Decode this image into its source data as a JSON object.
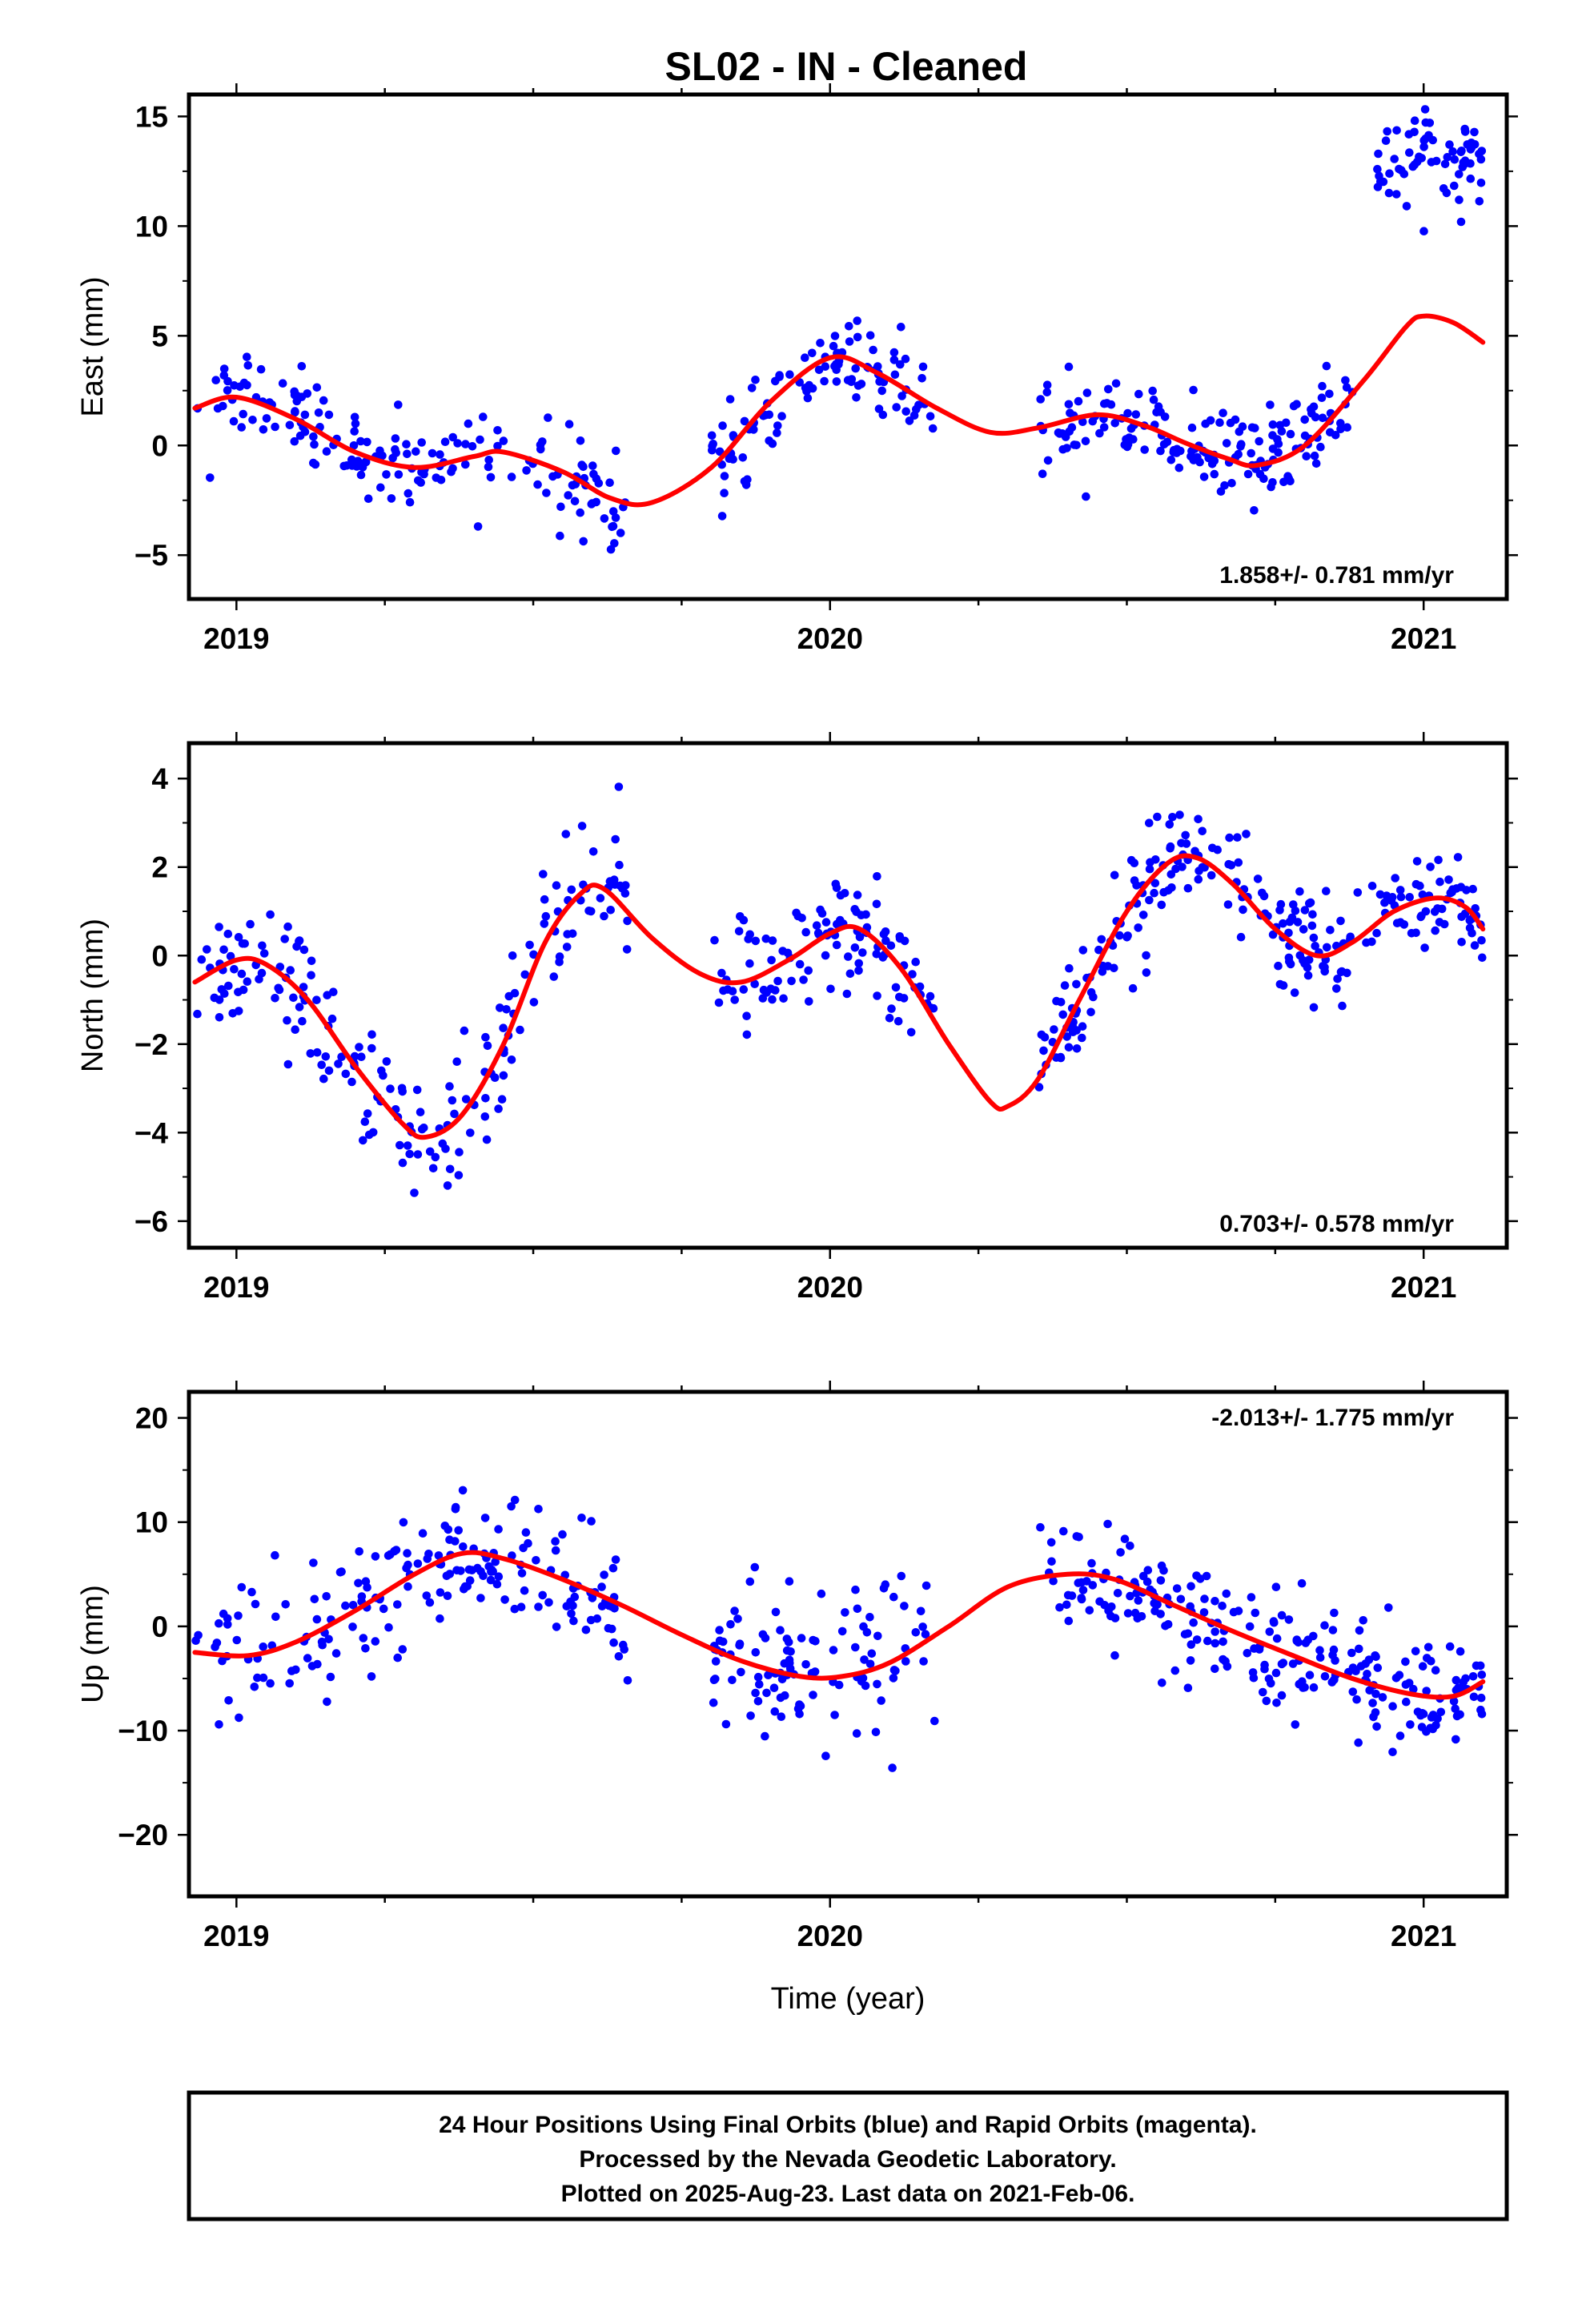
{
  "title": "SL02  - IN - Cleaned",
  "chart_data": [
    {
      "type": "scatter",
      "ylabel": "East (mm)",
      "xlabel": "",
      "xlim": [
        2018.92,
        2021.14
      ],
      "ylim": [
        -7.0,
        16.0
      ],
      "x_ticks": [
        2019,
        2020,
        2021
      ],
      "x_tick_labels": [
        "2019",
        "2020",
        "2021"
      ],
      "y_ticks": [
        15,
        10,
        5,
        0,
        -5
      ],
      "y_tick_labels": [
        "15",
        "10",
        "5",
        "0",
        "−5"
      ],
      "rate_label": "1.858+/- 0.781 mm/yr",
      "rate_position": "bottom-right",
      "series": [
        {
          "kind": "points",
          "color": "#0000ff",
          "segments": [
            {
              "x0": 2018.93,
              "x1": 2019.66,
              "mean": -0.8,
              "slope": 0.0,
              "amp": 1.1,
              "amp2": 0.6,
              "noise": 1.4,
              "n": 170
            },
            {
              "x0": 2019.8,
              "x1": 2020.18,
              "mean": 0.4,
              "slope": 0.0,
              "amp": 1.2,
              "amp2": 0.4,
              "noise": 1.5,
              "n": 110
            },
            {
              "x0": 2020.35,
              "x1": 2020.88,
              "mean": 0.5,
              "slope": 0.0,
              "amp": 1.2,
              "amp2": 0.5,
              "noise": 1.3,
              "n": 170
            },
            {
              "x0": 2020.92,
              "x1": 2021.1,
              "mean": 13.0,
              "slope": 0.0,
              "amp": 0.0,
              "amp2": 0.0,
              "noise": 1.3,
              "n": 70
            }
          ]
        },
        {
          "kind": "model",
          "color": "#ff0000",
          "x0": 2018.93,
          "x1": 2021.1,
          "points": [
            [
              2018.93,
              1.7
            ],
            [
              2019.0,
              2.2
            ],
            [
              2019.1,
              1.2
            ],
            [
              2019.2,
              -0.3
            ],
            [
              2019.3,
              -1.0
            ],
            [
              2019.4,
              -0.5
            ],
            [
              2019.45,
              -0.3
            ],
            [
              2019.55,
              -1.2
            ],
            [
              2019.63,
              -2.4
            ],
            [
              2019.7,
              -2.6
            ],
            [
              2019.8,
              -1.0
            ],
            [
              2019.9,
              2.0
            ],
            [
              2020.0,
              4.0
            ],
            [
              2020.08,
              3.3
            ],
            [
              2020.18,
              1.7
            ],
            [
              2020.27,
              0.6
            ],
            [
              2020.35,
              0.8
            ],
            [
              2020.45,
              1.4
            ],
            [
              2020.53,
              0.9
            ],
            [
              2020.6,
              0.1
            ],
            [
              2020.67,
              -0.6
            ],
            [
              2020.72,
              -0.9
            ],
            [
              2020.8,
              0.0
            ],
            [
              2020.9,
              3.0
            ],
            [
              2020.97,
              5.4
            ],
            [
              2021.0,
              5.9
            ],
            [
              2021.05,
              5.6
            ],
            [
              2021.1,
              4.7
            ]
          ]
        }
      ]
    },
    {
      "type": "scatter",
      "ylabel": "North (mm)",
      "xlabel": "",
      "xlim": [
        2018.92,
        2021.14
      ],
      "ylim": [
        -6.6,
        4.8
      ],
      "x_ticks": [
        2019,
        2020,
        2021
      ],
      "x_tick_labels": [
        "2019",
        "2020",
        "2021"
      ],
      "y_ticks": [
        4,
        2,
        0,
        -2,
        -4,
        -6
      ],
      "y_tick_labels": [
        "4",
        "2",
        "0",
        "−2",
        "−4",
        "−6"
      ],
      "rate_label": "0.703+/- 0.578 mm/yr",
      "rate_position": "bottom-right",
      "series": [
        {
          "kind": "points",
          "color": "#0000ff",
          "segments": [
            {
              "x0": 2018.93,
              "x1": 2019.66,
              "mean": -1.5,
              "slope": 0.0,
              "amp": 2.6,
              "amp2": 0.4,
              "noise": 1.0,
              "n": 190
            },
            {
              "x0": 2019.8,
              "x1": 2020.18,
              "mean": 0.0,
              "slope": 0.0,
              "amp": 0.7,
              "amp2": 0.3,
              "noise": 0.9,
              "n": 110
            },
            {
              "x0": 2020.35,
              "x1": 2021.1,
              "mean": 0.3,
              "slope": 0.0,
              "amp": 1.8,
              "amp2": 0.4,
              "noise": 0.9,
              "n": 240
            }
          ]
        },
        {
          "kind": "model",
          "color": "#ff0000",
          "x0": 2018.93,
          "x1": 2021.1,
          "points": [
            [
              2018.93,
              -0.6
            ],
            [
              2019.0,
              -0.1
            ],
            [
              2019.05,
              -0.2
            ],
            [
              2019.12,
              -1.0
            ],
            [
              2019.2,
              -2.5
            ],
            [
              2019.28,
              -3.8
            ],
            [
              2019.32,
              -4.1
            ],
            [
              2019.38,
              -3.6
            ],
            [
              2019.45,
              -2.0
            ],
            [
              2019.52,
              0.3
            ],
            [
              2019.58,
              1.4
            ],
            [
              2019.62,
              1.5
            ],
            [
              2019.7,
              0.4
            ],
            [
              2019.78,
              -0.4
            ],
            [
              2019.85,
              -0.6
            ],
            [
              2019.93,
              -0.1
            ],
            [
              2020.0,
              0.5
            ],
            [
              2020.05,
              0.6
            ],
            [
              2020.12,
              -0.3
            ],
            [
              2020.2,
              -2.0
            ],
            [
              2020.27,
              -3.3
            ],
            [
              2020.3,
              -3.4
            ],
            [
              2020.35,
              -2.8
            ],
            [
              2020.42,
              -1.0
            ],
            [
              2020.5,
              1.0
            ],
            [
              2020.57,
              2.1
            ],
            [
              2020.62,
              2.2
            ],
            [
              2020.68,
              1.6
            ],
            [
              2020.75,
              0.6
            ],
            [
              2020.82,
              0.0
            ],
            [
              2020.88,
              0.3
            ],
            [
              2020.95,
              1.0
            ],
            [
              2021.02,
              1.3
            ],
            [
              2021.07,
              1.1
            ],
            [
              2021.1,
              0.6
            ]
          ]
        }
      ]
    },
    {
      "type": "scatter",
      "ylabel": "Up (mm)",
      "xlabel": "Time (year)",
      "xlim": [
        2018.92,
        2021.14
      ],
      "ylim": [
        -25.9,
        22.5
      ],
      "x_ticks": [
        2019,
        2020,
        2021
      ],
      "x_tick_labels": [
        "2019",
        "2020",
        "2021"
      ],
      "y_ticks": [
        20,
        10,
        0,
        -10,
        -20
      ],
      "y_tick_labels": [
        "20",
        "10",
        "0",
        "−10",
        "−20"
      ],
      "rate_label": "-2.013+/- 1.775 mm/yr",
      "rate_position": "top-right",
      "series": [
        {
          "kind": "points",
          "color": "#0000ff",
          "segments": [
            {
              "x0": 2018.93,
              "x1": 2019.66,
              "mean": 1.5,
              "slope": 0.0,
              "amp": 5.0,
              "amp2": 0.5,
              "noise": 4.0,
              "n": 190
            },
            {
              "x0": 2019.8,
              "x1": 2020.18,
              "mean": -4.5,
              "slope": 0.0,
              "amp": 1.5,
              "amp2": 0.3,
              "noise": 4.5,
              "n": 110
            },
            {
              "x0": 2020.35,
              "x1": 2021.1,
              "mean": -1.0,
              "slope": 0.0,
              "amp": 6.0,
              "amp2": 0.5,
              "noise": 3.8,
              "n": 240
            }
          ]
        },
        {
          "kind": "model",
          "color": "#ff0000",
          "x0": 2018.93,
          "x1": 2021.1,
          "points": [
            [
              2018.93,
              -2.5
            ],
            [
              2019.02,
              -2.8
            ],
            [
              2019.1,
              -1.5
            ],
            [
              2019.2,
              1.5
            ],
            [
              2019.3,
              5.0
            ],
            [
              2019.38,
              7.0
            ],
            [
              2019.45,
              6.5
            ],
            [
              2019.55,
              4.5
            ],
            [
              2019.65,
              2.0
            ],
            [
              2019.75,
              -0.8
            ],
            [
              2019.85,
              -3.3
            ],
            [
              2019.95,
              -4.8
            ],
            [
              2020.02,
              -4.8
            ],
            [
              2020.1,
              -3.5
            ],
            [
              2020.2,
              0.0
            ],
            [
              2020.3,
              3.8
            ],
            [
              2020.4,
              5.0
            ],
            [
              2020.48,
              4.5
            ],
            [
              2020.58,
              2.0
            ],
            [
              2020.68,
              -0.5
            ],
            [
              2020.78,
              -2.8
            ],
            [
              2020.88,
              -5.0
            ],
            [
              2020.98,
              -6.5
            ],
            [
              2021.05,
              -6.7
            ],
            [
              2021.1,
              -5.3
            ]
          ]
        }
      ]
    }
  ],
  "footer": {
    "line1": "24 Hour Positions Using Final Orbits (blue) and Rapid Orbits (magenta).",
    "line2": "Processed by the Nevada Geodetic Laboratory.",
    "line3": "Plotted on 2025-Aug-23. Last data on 2021-Feb-06."
  }
}
